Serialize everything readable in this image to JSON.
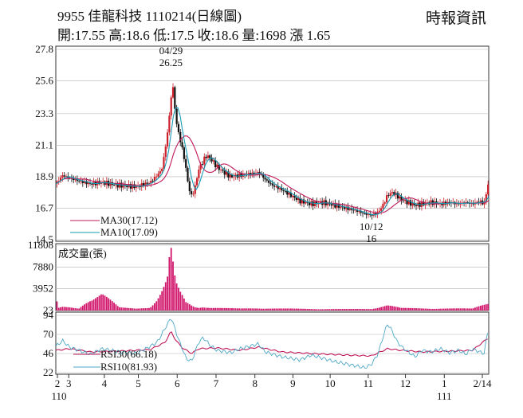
{
  "header": {
    "title": "9955  佳龍科技 1110214(日線圖)",
    "ohlc": "開:17.55 高:18.6 低:17.5 收:18.6 量:1698 漲 1.65",
    "source": "時報資訊"
  },
  "colors": {
    "up": "#cc1f2a",
    "down": "#111111",
    "ma30": "#c0185a",
    "ma10": "#1a9bb5",
    "volume": "#d1166c",
    "rsi30": "#c0185a",
    "rsi10": "#4fa9c8",
    "grid": "#b5b5b5"
  },
  "chart_data": [
    {
      "type": "candlestick",
      "y_ticks": [
        "27.8",
        "25.6",
        "23.3",
        "21.1",
        "18.9",
        "16.7",
        "14.5"
      ],
      "ylim": [
        14.5,
        27.8
      ],
      "x_ticks": [
        "2",
        "3",
        "4",
        "5",
        "6",
        "7",
        "8",
        "9",
        "10",
        "11",
        "12",
        "1",
        "2/14"
      ],
      "x_year_labels": [
        "110",
        "111"
      ],
      "annotations": {
        "high": {
          "label_date": "04/29",
          "label_value": "26.25",
          "value": 26.25
        },
        "low": {
          "label_date": "10/12",
          "label_value": "16",
          "value": 16
        }
      },
      "legend": [
        {
          "label": "MA30(17.12)",
          "color": "#c0185a"
        },
        {
          "label": "MA10(17.09)",
          "color": "#1a9bb5"
        }
      ],
      "close_path": [
        [
          0,
          18.4
        ],
        [
          6,
          19.0
        ],
        [
          12,
          18.8
        ],
        [
          20,
          18.6
        ],
        [
          30,
          18.4
        ],
        [
          40,
          18.5
        ],
        [
          55,
          18.3
        ],
        [
          70,
          18.2
        ],
        [
          82,
          18.5
        ],
        [
          88,
          19.0
        ],
        [
          92,
          19.4
        ],
        [
          95,
          20.8
        ],
        [
          98,
          22.6
        ],
        [
          100,
          24.4
        ],
        [
          102,
          25.2
        ],
        [
          104,
          23.0
        ],
        [
          107,
          21.8
        ],
        [
          110,
          20.8
        ],
        [
          113,
          19.5
        ],
        [
          115,
          18.3
        ],
        [
          118,
          17.5
        ],
        [
          121,
          18.2
        ],
        [
          124,
          19.4
        ],
        [
          128,
          20.0
        ],
        [
          131,
          20.4
        ],
        [
          135,
          20.1
        ],
        [
          140,
          19.6
        ],
        [
          146,
          19.2
        ],
        [
          152,
          18.9
        ],
        [
          160,
          19.0
        ],
        [
          170,
          19.1
        ],
        [
          176,
          19.2
        ],
        [
          182,
          18.7
        ],
        [
          188,
          18.3
        ],
        [
          196,
          18.0
        ],
        [
          204,
          17.6
        ],
        [
          212,
          17.2
        ],
        [
          222,
          17.0
        ],
        [
          232,
          17.1
        ],
        [
          242,
          16.9
        ],
        [
          252,
          16.7
        ],
        [
          262,
          16.5
        ],
        [
          268,
          16.3
        ],
        [
          274,
          16.2
        ],
        [
          280,
          16.4
        ],
        [
          284,
          16.9
        ],
        [
          288,
          17.6
        ],
        [
          292,
          17.8
        ],
        [
          296,
          17.6
        ],
        [
          300,
          17.3
        ],
        [
          306,
          17.1
        ],
        [
          312,
          16.9
        ],
        [
          318,
          17.0
        ],
        [
          326,
          17.1
        ],
        [
          334,
          17.0
        ],
        [
          342,
          17.1
        ],
        [
          350,
          17.0
        ],
        [
          356,
          17.1
        ],
        [
          362,
          17.0
        ],
        [
          368,
          17.2
        ],
        [
          372,
          17.0
        ],
        [
          376,
          18.6
        ]
      ]
    },
    {
      "type": "bar",
      "label": "成交量(張)",
      "y_ticks": [
        "11808",
        "7880",
        "3952",
        "23"
      ],
      "ylim": [
        23,
        11808
      ],
      "values": [
        [
          2,
          500
        ],
        [
          6,
          700
        ],
        [
          12,
          600
        ],
        [
          20,
          400
        ],
        [
          30,
          2400
        ],
        [
          40,
          3500
        ],
        [
          55,
          600
        ],
        [
          70,
          400
        ],
        [
          82,
          700
        ],
        [
          88,
          2200
        ],
        [
          92,
          3800
        ],
        [
          95,
          5200
        ],
        [
          97,
          6400
        ],
        [
          98,
          9100
        ],
        [
          100,
          11808
        ],
        [
          102,
          8600
        ],
        [
          104,
          5400
        ],
        [
          106,
          4400
        ],
        [
          108,
          3500
        ],
        [
          110,
          2800
        ],
        [
          113,
          1600
        ],
        [
          115,
          1400
        ],
        [
          118,
          1000
        ],
        [
          121,
          700
        ],
        [
          124,
          600
        ],
        [
          128,
          800
        ],
        [
          135,
          600
        ],
        [
          145,
          500
        ],
        [
          160,
          400
        ],
        [
          176,
          500
        ],
        [
          196,
          400
        ],
        [
          222,
          350
        ],
        [
          252,
          300
        ],
        [
          274,
          350
        ],
        [
          288,
          1100
        ],
        [
          300,
          500
        ],
        [
          318,
          450
        ],
        [
          342,
          420
        ],
        [
          362,
          400
        ],
        [
          376,
          1698
        ]
      ]
    },
    {
      "type": "line",
      "y_ticks": [
        "94",
        "70",
        "46",
        "22"
      ],
      "ylim": [
        22,
        94
      ],
      "legend": [
        {
          "label": "RSI30(66.18)",
          "color": "#c0185a"
        },
        {
          "label": "RSI10(81.93)",
          "color": "#4fa9c8"
        }
      ],
      "series": [
        {
          "name": "RSI30",
          "values": [
            [
              0,
              50
            ],
            [
              12,
              52
            ],
            [
              30,
              48
            ],
            [
              55,
              49
            ],
            [
              82,
              51
            ],
            [
              95,
              60
            ],
            [
              100,
              74
            ],
            [
              104,
              63
            ],
            [
              110,
              53
            ],
            [
              118,
              46
            ],
            [
              124,
              52
            ],
            [
              140,
              53
            ],
            [
              160,
              50
            ],
            [
              176,
              54
            ],
            [
              196,
              48
            ],
            [
              222,
              46
            ],
            [
              252,
              44
            ],
            [
              274,
              43
            ],
            [
              288,
              52
            ],
            [
              300,
              50
            ],
            [
              318,
              48
            ],
            [
              342,
              49
            ],
            [
              362,
              50
            ],
            [
              376,
              66.18
            ]
          ]
        },
        {
          "name": "RSI10",
          "values": [
            [
              0,
              55
            ],
            [
              6,
              62
            ],
            [
              12,
              54
            ],
            [
              20,
              50
            ],
            [
              30,
              45
            ],
            [
              40,
              52
            ],
            [
              55,
              48
            ],
            [
              70,
              46
            ],
            [
              82,
              55
            ],
            [
              88,
              60
            ],
            [
              92,
              70
            ],
            [
              95,
              78
            ],
            [
              98,
              85
            ],
            [
              100,
              92
            ],
            [
              104,
              75
            ],
            [
              107,
              62
            ],
            [
              110,
              52
            ],
            [
              113,
              40
            ],
            [
              118,
              36
            ],
            [
              124,
              60
            ],
            [
              128,
              66
            ],
            [
              135,
              55
            ],
            [
              140,
              50
            ],
            [
              152,
              47
            ],
            [
              160,
              52
            ],
            [
              176,
              58
            ],
            [
              182,
              48
            ],
            [
              196,
              42
            ],
            [
              212,
              38
            ],
            [
              222,
              44
            ],
            [
              232,
              40
            ],
            [
              242,
              36
            ],
            [
              252,
              33
            ],
            [
              262,
              30
            ],
            [
              268,
              28
            ],
            [
              274,
              32
            ],
            [
              280,
              46
            ],
            [
              284,
              66
            ],
            [
              288,
              83
            ],
            [
              292,
              75
            ],
            [
              296,
              62
            ],
            [
              300,
              55
            ],
            [
              306,
              48
            ],
            [
              312,
              42
            ],
            [
              318,
              50
            ],
            [
              326,
              48
            ],
            [
              334,
              52
            ],
            [
              342,
              47
            ],
            [
              350,
              50
            ],
            [
              356,
              45
            ],
            [
              362,
              52
            ],
            [
              368,
              48
            ],
            [
              372,
              46
            ],
            [
              376,
              81.93
            ]
          ]
        }
      ]
    }
  ]
}
